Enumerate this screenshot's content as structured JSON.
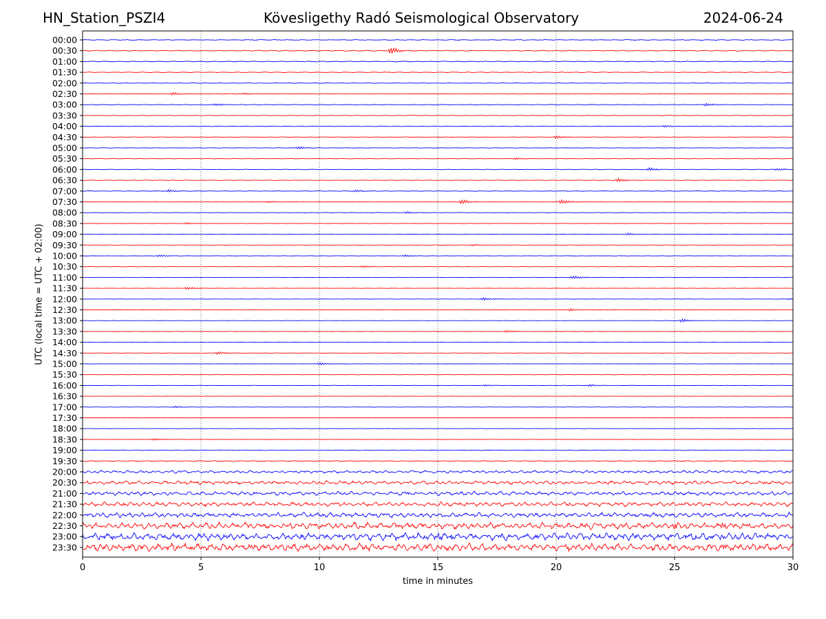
{
  "header": {
    "station": "HN_Station_PSZI4",
    "observatory": "Kövesligethy Radó Seismological Observatory",
    "date": "2024-06-24"
  },
  "chart_data": {
    "type": "line",
    "subtype": "helicorder",
    "xlabel": "time in minutes",
    "ylabel": "UTC (local time = UTC + 02:00)",
    "xlim": [
      0,
      30
    ],
    "x_ticks": [
      0,
      5,
      10,
      15,
      20,
      25,
      30
    ],
    "grid": "vertical dotted lines at 5-minute ticks",
    "trace_colors": [
      "#0000ff",
      "#ff0000"
    ],
    "rows": [
      "00:00",
      "00:30",
      "01:00",
      "01:30",
      "02:00",
      "02:30",
      "03:00",
      "03:30",
      "04:00",
      "04:30",
      "05:00",
      "05:30",
      "06:00",
      "06:30",
      "07:00",
      "07:30",
      "08:00",
      "08:30",
      "09:00",
      "09:30",
      "10:00",
      "10:30",
      "11:00",
      "11:30",
      "12:00",
      "12:30",
      "13:00",
      "13:30",
      "14:00",
      "14:30",
      "15:00",
      "15:30",
      "16:00",
      "16:30",
      "17:00",
      "17:30",
      "18:00",
      "18:30",
      "19:00",
      "19:30",
      "20:00",
      "20:30",
      "21:00",
      "21:30",
      "22:00",
      "22:30",
      "23:00",
      "23:30"
    ],
    "noise_level": [
      0.4,
      0.5,
      0.5,
      0.4,
      0.3,
      0.3,
      0.3,
      0.3,
      0.3,
      0.2,
      0.25,
      0.2,
      0.3,
      0.3,
      0.3,
      0.25,
      0.25,
      0.2,
      0.2,
      0.15,
      0.2,
      0.2,
      0.2,
      0.15,
      0.15,
      0.2,
      0.15,
      0.15,
      0.15,
      0.15,
      0.15,
      0.15,
      0.15,
      0.1,
      0.15,
      0.1,
      0.15,
      0.15,
      0.3,
      0.5,
      1.2,
      1.5,
      1.6,
      1.8,
      2.0,
      2.6,
      3.0,
      3.2
    ],
    "events": [
      {
        "row": "00:30",
        "minute": 13.0,
        "amplitude": 6
      },
      {
        "row": "02:30",
        "minute": 3.8,
        "amplitude": 2.5
      },
      {
        "row": "02:30",
        "minute": 6.8,
        "amplitude": 2.0
      },
      {
        "row": "03:00",
        "minute": 5.6,
        "amplitude": 2.0
      },
      {
        "row": "03:00",
        "minute": 26.3,
        "amplitude": 2.5
      },
      {
        "row": "04:00",
        "minute": 24.6,
        "amplitude": 2.0
      },
      {
        "row": "04:30",
        "minute": 20.0,
        "amplitude": 3.0
      },
      {
        "row": "05:00",
        "minute": 9.1,
        "amplitude": 2.5
      },
      {
        "row": "05:30",
        "minute": 18.3,
        "amplitude": 2.0
      },
      {
        "row": "06:00",
        "minute": 23.9,
        "amplitude": 3.0
      },
      {
        "row": "06:00",
        "minute": 29.3,
        "amplitude": 2.0
      },
      {
        "row": "06:30",
        "minute": 22.6,
        "amplitude": 3.5
      },
      {
        "row": "07:00",
        "minute": 3.6,
        "amplitude": 2.5
      },
      {
        "row": "07:00",
        "minute": 11.5,
        "amplitude": 2.0
      },
      {
        "row": "07:30",
        "minute": 7.8,
        "amplitude": 2.0
      },
      {
        "row": "07:30",
        "minute": 16.0,
        "amplitude": 4.0
      },
      {
        "row": "07:30",
        "minute": 20.2,
        "amplitude": 4.0
      },
      {
        "row": "08:00",
        "minute": 13.7,
        "amplitude": 2.0
      },
      {
        "row": "08:30",
        "minute": 4.4,
        "amplitude": 2.0
      },
      {
        "row": "09:00",
        "minute": 23.0,
        "amplitude": 2.0
      },
      {
        "row": "09:30",
        "minute": 16.5,
        "amplitude": 1.5
      },
      {
        "row": "10:00",
        "minute": 3.2,
        "amplitude": 2.0
      },
      {
        "row": "10:00",
        "minute": 13.6,
        "amplitude": 2.0
      },
      {
        "row": "10:30",
        "minute": 11.8,
        "amplitude": 2.0
      },
      {
        "row": "11:00",
        "minute": 20.7,
        "amplitude": 3.0
      },
      {
        "row": "11:30",
        "minute": 4.4,
        "amplitude": 2.5
      },
      {
        "row": "12:00",
        "minute": 16.9,
        "amplitude": 2.5
      },
      {
        "row": "12:00",
        "minute": 29.8,
        "amplitude": 1.5
      },
      {
        "row": "12:30",
        "minute": 20.6,
        "amplitude": 2.0
      },
      {
        "row": "13:00",
        "minute": 25.3,
        "amplitude": 3.0
      },
      {
        "row": "13:30",
        "minute": 17.9,
        "amplitude": 2.0
      },
      {
        "row": "14:30",
        "minute": 5.7,
        "amplitude": 2.5
      },
      {
        "row": "15:00",
        "minute": 10.0,
        "amplitude": 2.5
      },
      {
        "row": "16:00",
        "minute": 17.0,
        "amplitude": 1.5
      },
      {
        "row": "16:00",
        "minute": 21.4,
        "amplitude": 2.0
      },
      {
        "row": "17:00",
        "minute": 3.9,
        "amplitude": 1.5
      },
      {
        "row": "18:30",
        "minute": 3.0,
        "amplitude": 2.0
      },
      {
        "row": "21:00",
        "minute": 7.2,
        "amplitude": 2.0
      },
      {
        "row": "21:00",
        "minute": 13.7,
        "amplitude": 2.0
      },
      {
        "row": "23:00",
        "minute": 1.1,
        "amplitude": 4.0
      },
      {
        "row": "23:00",
        "minute": 9.3,
        "amplitude": 3.0
      },
      {
        "row": "23:00",
        "minute": 15.0,
        "amplitude": 4.0
      },
      {
        "row": "23:30",
        "minute": 27.0,
        "amplitude": 3.5
      },
      {
        "row": "22:30",
        "minute": 25.0,
        "amplitude": 3.5
      },
      {
        "row": "22:30",
        "minute": 27.0,
        "amplitude": 4.0
      }
    ]
  }
}
